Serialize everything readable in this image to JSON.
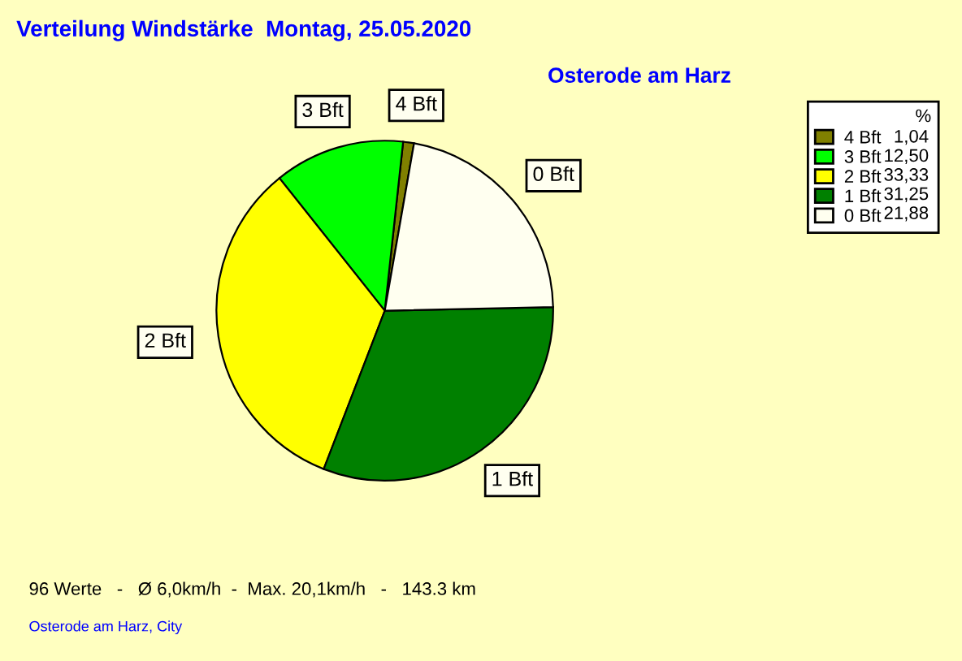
{
  "chart_data": {
    "type": "pie",
    "title": "Verteilung Windstärke  Montag, 25.05.2020",
    "subtitle": "Osterode am Harz",
    "categories": [
      "4 Bft",
      "3 Bft",
      "2 Bft",
      "1 Bft",
      "0 Bft"
    ],
    "values": [
      1.04,
      12.5,
      33.33,
      31.25,
      21.88
    ],
    "value_labels": [
      "1,04",
      "12,50",
      "33,33",
      "31,25",
      "21,88"
    ],
    "colors": [
      "#808000",
      "#00ff00",
      "#ffff00",
      "#008000",
      "#fffff0"
    ],
    "legend_title": "%",
    "legend": "top right",
    "annotations": [
      "96 Werte   -   Ø 6,0km/h  -  Max. 20,1km/h   -   143.3 km",
      "Osterode am Harz, City"
    ]
  }
}
